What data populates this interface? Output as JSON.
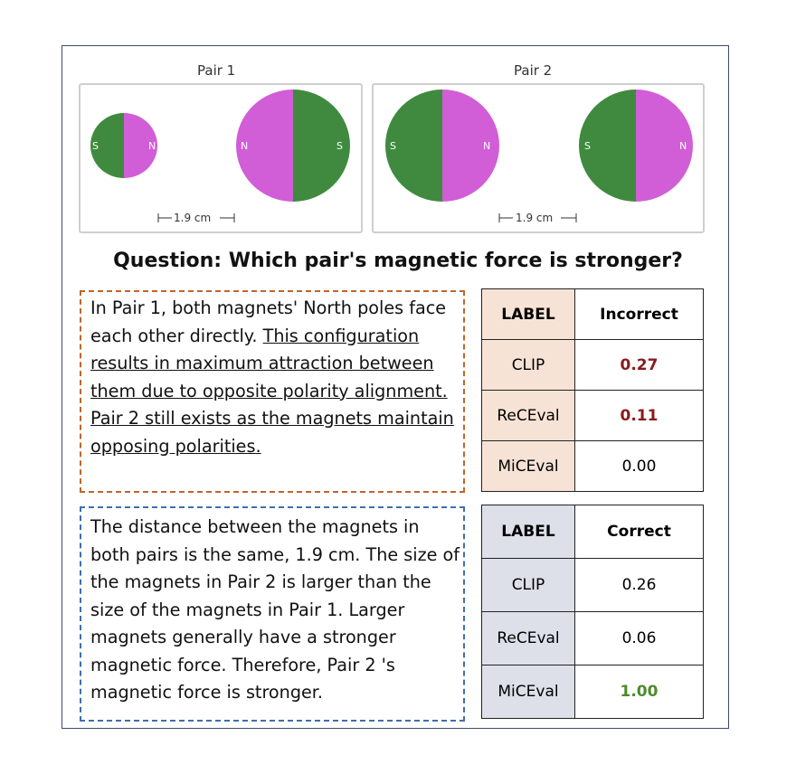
{
  "diagram": {
    "pair1_title": "Pair 1",
    "pair2_title": "Pair 2",
    "pole_s": "S",
    "pole_n": "N",
    "distance_label": "1.9 cm",
    "colors": {
      "north": "#d15ed6",
      "south": "#3f8a3f"
    }
  },
  "question": "Question: Which pair's magnetic force is stronger?",
  "response_incorrect": {
    "plain_part": "In Pair 1, both magnets' North poles face each other directly. ",
    "underlined_part": "This configuration results in maximum attraction between them due to opposite polarity alignment. Pair 2 still exists as the magnets maintain opposing polarities."
  },
  "response_correct": {
    "text": "The distance between the magnets in both pairs is the same, 1.9 cm. The size of the magnets in Pair 2 is larger than the size of the magnets in Pair 1. Larger magnets generally have a stronger magnetic force. Therefore, Pair 2 's magnetic force is stronger."
  },
  "table_incorrect": {
    "header_label": "LABEL",
    "header_value": "Incorrect",
    "rows": [
      {
        "metric": "CLIP",
        "score": "0.27"
      },
      {
        "metric": "ReCEval",
        "score": "0.11"
      },
      {
        "metric": "MiCEval",
        "score": "0.00"
      }
    ]
  },
  "table_correct": {
    "header_label": "LABEL",
    "header_value": "Correct",
    "rows": [
      {
        "metric": "CLIP",
        "score": "0.26"
      },
      {
        "metric": "ReCEval",
        "score": "0.06"
      },
      {
        "metric": "MiCEval",
        "score": "1.00"
      }
    ]
  }
}
